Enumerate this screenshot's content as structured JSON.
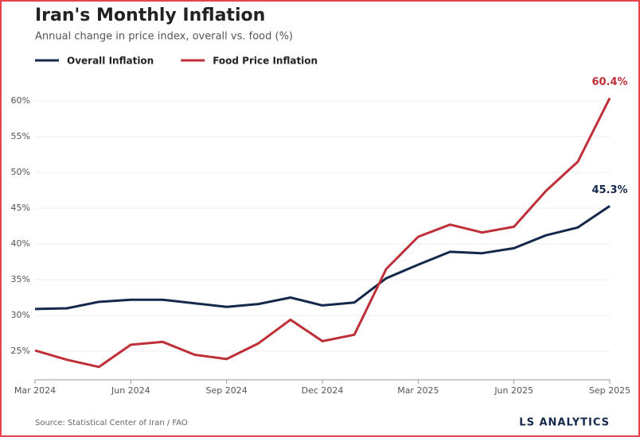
{
  "chart_data": {
    "type": "line",
    "title": "Iran's Monthly Inflation",
    "subtitle": "Annual change in price index, overall vs. food (%)",
    "categories": [
      "Mar 2024",
      null,
      null,
      "Jun 2024",
      null,
      null,
      "Sep 2024",
      null,
      null,
      "Dec 2024",
      null,
      null,
      "Mar 2025",
      null,
      null,
      "Jun 2025",
      null,
      null,
      "Sep 2025"
    ],
    "series": [
      {
        "name": "Overall Inflation",
        "color": "#14284b",
        "values": [
          30.9,
          31.0,
          31.9,
          32.2,
          32.2,
          31.7,
          31.2,
          31.6,
          32.5,
          31.4,
          31.8,
          35.2,
          37.1,
          38.9,
          38.7,
          39.4,
          41.2,
          42.3,
          45.3
        ],
        "value_labels": [
          null,
          null,
          null,
          null,
          null,
          null,
          null,
          null,
          null,
          null,
          null,
          null,
          null,
          null,
          null,
          null,
          null,
          null,
          "45.3%"
        ]
      },
      {
        "name": "Food Price Inflation",
        "color": "#bf2f38",
        "values": [
          25.1,
          23.8,
          22.8,
          25.9,
          26.3,
          24.5,
          23.9,
          26.1,
          29.4,
          26.4,
          27.3,
          36.5,
          41.0,
          42.7,
          41.6,
          42.4,
          47.4,
          51.5,
          60.4
        ],
        "value_labels": [
          null,
          null,
          null,
          null,
          null,
          null,
          null,
          null,
          null,
          null,
          null,
          null,
          null,
          null,
          null,
          null,
          null,
          null,
          "60.4%"
        ]
      }
    ],
    "ylim": [
      21,
      62
    ],
    "yticks": [
      {
        "value": 25,
        "label": "25%"
      },
      {
        "value": 30,
        "label": "30%"
      },
      {
        "value": 35,
        "label": "35%"
      },
      {
        "value": 40,
        "label": "40%"
      },
      {
        "value": 45,
        "label": "45%"
      },
      {
        "value": 50,
        "label": "50%"
      },
      {
        "value": 55,
        "label": "55%"
      },
      {
        "value": 60,
        "label": "60%"
      }
    ],
    "grid": true,
    "legend": "top-left",
    "source": "Source: Statistical Center of Iran / FAO",
    "brand": "LS ANALYTICS"
  }
}
